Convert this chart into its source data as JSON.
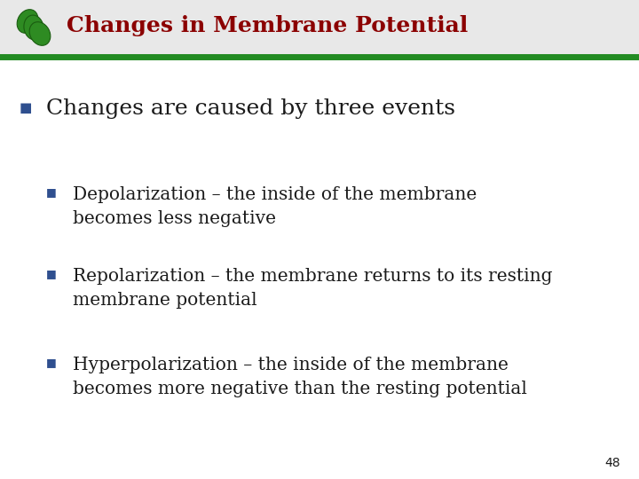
{
  "title": "Changes in Membrane Potential",
  "title_color": "#8B0000",
  "title_fontsize": 18,
  "header_line_color": "#228B22",
  "header_bg_color": "#e8e8e8",
  "background_color": "#FFFFFF",
  "bullet_color": "#2F4F8F",
  "text_color": "#1a1a1a",
  "bullet1": "Changes are caused by three events",
  "bullet1_fontsize": 18,
  "sub_bullets": [
    "Depolarization – the inside of the membrane\nbecomes less negative",
    "Repolarization – the membrane returns to its resting\nmembrane potential",
    "Hyperpolarization – the inside of the membrane\nbecomes more negative than the resting potential"
  ],
  "sub_bullet_fontsize": 14.5,
  "page_number": "48",
  "page_number_fontsize": 10,
  "fig_width": 7.2,
  "fig_height": 5.4,
  "dpi": 100
}
